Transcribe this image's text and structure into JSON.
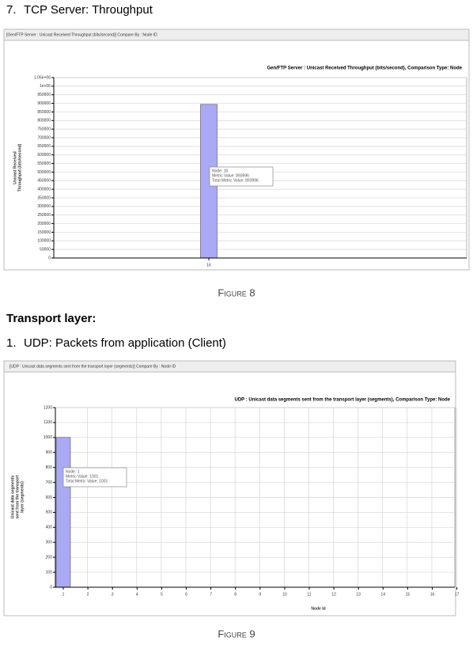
{
  "heading1": {
    "number": "7.",
    "text": "TCP Server: Throughput"
  },
  "caption1": "Figure 8",
  "section": "Transport layer:",
  "heading2": {
    "number": "1.",
    "text": "UDP: Packets from application (Client)"
  },
  "caption2": "Figure 9",
  "chart_data": [
    {
      "type": "bar",
      "tab_label": "[Gen/FTP Server : Unicast Received Throughput (bits/second)] Compare By : Node ID",
      "title": "Gen/FTP Server :  Unicast Received Throughput (bits/second), Comparison Type: Node",
      "ylabel_lines": [
        "Unicast Received",
        "Throughput (bits/second)"
      ],
      "categories": [
        "16"
      ],
      "values": [
        893996
      ],
      "color": "#a9a9f5",
      "tooltip": [
        "Node: 16",
        "Metric Value: 893996",
        "Total Metric Value: 893996"
      ],
      "ylim": [
        0,
        1050000
      ],
      "yticks": [
        0,
        50000,
        100000,
        150000,
        200000,
        250000,
        300000,
        350000,
        400000,
        450000,
        500000,
        550000,
        600000,
        650000,
        700000,
        750000,
        800000,
        850000,
        900000,
        950000,
        {
          "value": 1000000,
          "label": "1e+06"
        },
        {
          "value": 1050000,
          "label": "1.05e+06"
        }
      ],
      "grid": true
    },
    {
      "type": "bar",
      "tab_label": "[UDP : Unicast data segments sent from the transport layer (segments)] Compare By : Node ID",
      "title": "UDP :  Unicast data segments sent from the transport layer (segments), Comparison Type: Node",
      "ylabel_lines": [
        "Unicast data segments",
        "sent from the transport",
        "layer (segments)"
      ],
      "xlabel": "Node Id",
      "categories": [
        "1",
        "2",
        "3",
        "4",
        "5",
        "6",
        "7",
        "8",
        "9",
        "10",
        "11",
        "12",
        "13",
        "14",
        "15",
        "16",
        "17"
      ],
      "values": [
        1001,
        null,
        null,
        null,
        null,
        null,
        null,
        null,
        null,
        null,
        null,
        null,
        null,
        null,
        null,
        null,
        null
      ],
      "color": "#a9a9f5",
      "tooltip": [
        "Node: 1",
        "Metric Value: 1001",
        "Total Metric Value: 1001"
      ],
      "ylim": [
        0,
        1200
      ],
      "yticks": [
        0,
        100,
        200,
        300,
        400,
        500,
        600,
        700,
        800,
        900,
        1000,
        1100,
        1200
      ],
      "grid": true
    }
  ]
}
